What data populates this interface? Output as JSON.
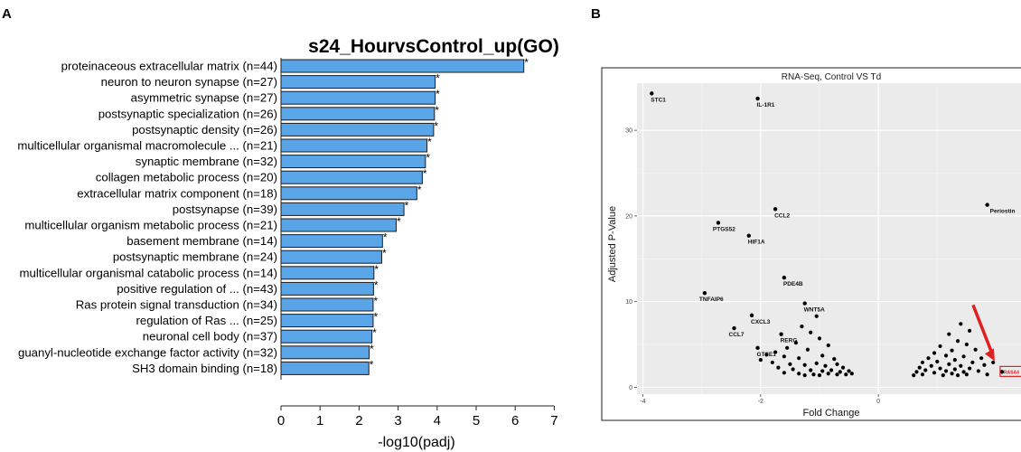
{
  "panels": {
    "a_label": "A",
    "b_label": "B"
  },
  "chart_data": [
    {
      "type": "bar",
      "orientation": "horizontal",
      "title": "s24_HourvsControl_up(GO)",
      "xlabel": "-log10(padj)",
      "ylabel": "",
      "xlim": [
        0,
        7
      ],
      "xticks": [
        "0",
        "1",
        "2",
        "3",
        "4",
        "5",
        "6",
        "7"
      ],
      "bar_color": "#5aa4e8",
      "significance_marker": "*",
      "categories": [
        "proteinaceous extracellular matrix (n=44)",
        "neuron to neuron synapse (n=27)",
        "asymmetric synapse (n=27)",
        "postsynaptic specialization (n=26)",
        "postsynaptic density (n=26)",
        "multicellular organismal macromolecule ... (n=21)",
        "synaptic membrane (n=32)",
        "collagen metabolic process (n=20)",
        "extracellular matrix component (n=18)",
        "postsynapse (n=39)",
        "multicellular organism metabolic process (n=21)",
        "basement membrane (n=14)",
        "postsynaptic membrane (n=24)",
        "multicellular organismal catabolic process (n=14)",
        "positive regulation of ... (n=43)",
        "Ras protein signal transduction (n=34)",
        "regulation of Ras ... (n=25)",
        "neuronal cell body (n=37)",
        "guanyl-nucleotide exchange factor activity (n=32)",
        "SH3 domain binding (n=18)"
      ],
      "values": [
        6.22,
        3.95,
        3.95,
        3.93,
        3.91,
        3.74,
        3.7,
        3.62,
        3.48,
        3.15,
        2.95,
        2.6,
        2.58,
        2.38,
        2.37,
        2.36,
        2.36,
        2.33,
        2.26,
        2.25
      ]
    },
    {
      "type": "scatter",
      "title": "RNA-Seq, Control VS Td",
      "xlabel": "Fold Change",
      "ylabel": "Adjusted P-Value",
      "xlim": [
        -4.1,
        2.5
      ],
      "ylim": [
        -0.8,
        35.5
      ],
      "xticks": [
        "-4",
        "-2",
        "0"
      ],
      "yticks": [
        "0",
        "10",
        "20",
        "30"
      ],
      "grid": true,
      "background": "#ebebeb",
      "highlight_color": "#e02020",
      "labeled_points": [
        {
          "label": "STC1",
          "x": -3.85,
          "y": 34.3
        },
        {
          "label": "IL-1R1",
          "x": -2.05,
          "y": 33.7
        },
        {
          "label": "CCL2",
          "x": -1.75,
          "y": 20.8
        },
        {
          "label": "Periostin",
          "x": 1.85,
          "y": 21.3
        },
        {
          "label": "PTGS52",
          "x": -2.72,
          "y": 19.2
        },
        {
          "label": "HIF1A",
          "x": -2.2,
          "y": 17.7
        },
        {
          "label": "PDE4B",
          "x": -1.6,
          "y": 12.8
        },
        {
          "label": "TNFAIP6",
          "x": -2.95,
          "y": 11.0
        },
        {
          "label": "WNT5A",
          "x": -1.25,
          "y": 9.8
        },
        {
          "label": "CXCL3",
          "x": -2.15,
          "y": 8.4
        },
        {
          "label": "CCL7",
          "x": -2.45,
          "y": 6.9
        },
        {
          "label": "RERG",
          "x": -1.65,
          "y": 6.2
        },
        {
          "label": "GTSE1",
          "x": -2.05,
          "y": 4.6
        },
        {
          "label": "RASA4",
          "x": 2.1,
          "y": 1.8
        }
      ],
      "points": [
        {
          "x": -1.05,
          "y": 8.3
        },
        {
          "x": -1.3,
          "y": 7.1
        },
        {
          "x": -1.15,
          "y": 6.4
        },
        {
          "x": -1.0,
          "y": 5.7
        },
        {
          "x": -1.4,
          "y": 5.2
        },
        {
          "x": -1.55,
          "y": 4.6
        },
        {
          "x": -1.2,
          "y": 4.4
        },
        {
          "x": -0.85,
          "y": 4.9
        },
        {
          "x": -1.75,
          "y": 4.1
        },
        {
          "x": -1.9,
          "y": 3.8
        },
        {
          "x": -1.6,
          "y": 3.6
        },
        {
          "x": -1.35,
          "y": 3.4
        },
        {
          "x": -0.95,
          "y": 3.7
        },
        {
          "x": -0.75,
          "y": 3.3
        },
        {
          "x": -2.0,
          "y": 3.2
        },
        {
          "x": -1.8,
          "y": 2.9
        },
        {
          "x": -1.5,
          "y": 2.7
        },
        {
          "x": -1.25,
          "y": 2.6
        },
        {
          "x": -1.05,
          "y": 2.8
        },
        {
          "x": -0.9,
          "y": 2.5
        },
        {
          "x": -0.7,
          "y": 2.7
        },
        {
          "x": -0.6,
          "y": 2.3
        },
        {
          "x": -1.7,
          "y": 2.3
        },
        {
          "x": -1.45,
          "y": 2.1
        },
        {
          "x": -1.15,
          "y": 2.0
        },
        {
          "x": -0.95,
          "y": 1.9
        },
        {
          "x": -0.8,
          "y": 2.0
        },
        {
          "x": -0.65,
          "y": 1.8
        },
        {
          "x": -0.5,
          "y": 1.9
        },
        {
          "x": -1.6,
          "y": 1.7
        },
        {
          "x": -1.35,
          "y": 1.6
        },
        {
          "x": -1.1,
          "y": 1.5
        },
        {
          "x": -0.85,
          "y": 1.6
        },
        {
          "x": -0.7,
          "y": 1.5
        },
        {
          "x": -0.55,
          "y": 1.5
        },
        {
          "x": -1.25,
          "y": 1.4
        },
        {
          "x": -1.0,
          "y": 1.4
        },
        {
          "x": -0.45,
          "y": 1.6
        },
        {
          "x": 1.4,
          "y": 7.4
        },
        {
          "x": 1.2,
          "y": 6.2
        },
        {
          "x": 1.55,
          "y": 6.6
        },
        {
          "x": 1.35,
          "y": 5.4
        },
        {
          "x": 1.05,
          "y": 4.8
        },
        {
          "x": 1.5,
          "y": 5.0
        },
        {
          "x": 1.25,
          "y": 4.3
        },
        {
          "x": 0.95,
          "y": 4.0
        },
        {
          "x": 1.65,
          "y": 4.4
        },
        {
          "x": 1.15,
          "y": 3.7
        },
        {
          "x": 0.85,
          "y": 3.4
        },
        {
          "x": 1.45,
          "y": 3.6
        },
        {
          "x": 1.3,
          "y": 3.2
        },
        {
          "x": 1.0,
          "y": 3.0
        },
        {
          "x": 1.75,
          "y": 3.4
        },
        {
          "x": 0.75,
          "y": 2.9
        },
        {
          "x": 1.6,
          "y": 2.9
        },
        {
          "x": 1.2,
          "y": 2.7
        },
        {
          "x": 0.9,
          "y": 2.5
        },
        {
          "x": 1.4,
          "y": 2.5
        },
        {
          "x": 1.8,
          "y": 2.6
        },
        {
          "x": 0.7,
          "y": 2.3
        },
        {
          "x": 1.05,
          "y": 2.2
        },
        {
          "x": 1.3,
          "y": 2.1
        },
        {
          "x": 1.55,
          "y": 2.2
        },
        {
          "x": 0.8,
          "y": 2.0
        },
        {
          "x": 1.15,
          "y": 1.9
        },
        {
          "x": 1.45,
          "y": 1.8
        },
        {
          "x": 1.7,
          "y": 1.9
        },
        {
          "x": 0.65,
          "y": 1.8
        },
        {
          "x": 0.95,
          "y": 1.7
        },
        {
          "x": 1.25,
          "y": 1.6
        },
        {
          "x": 1.5,
          "y": 1.5
        },
        {
          "x": 0.75,
          "y": 1.5
        },
        {
          "x": 1.1,
          "y": 1.4
        },
        {
          "x": 1.35,
          "y": 1.4
        },
        {
          "x": 1.85,
          "y": 1.5
        },
        {
          "x": 0.6,
          "y": 1.4
        },
        {
          "x": 1.95,
          "y": 2.9
        }
      ]
    }
  ]
}
